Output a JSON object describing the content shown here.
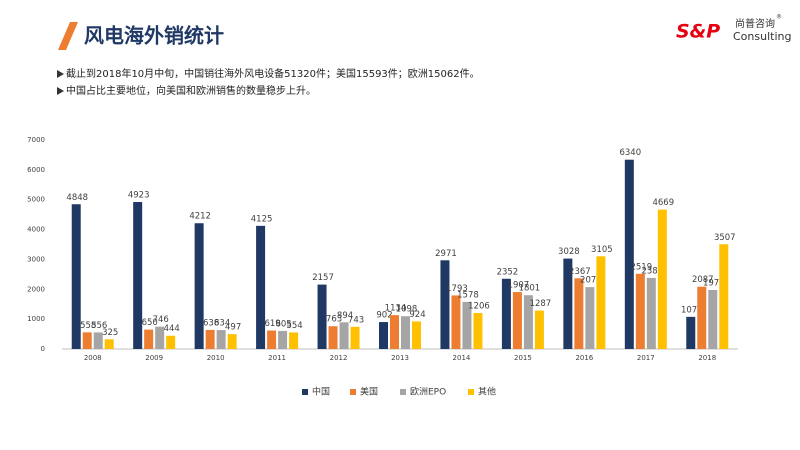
{
  "header": {
    "title": "风电海外销统计",
    "logo_mark": "S&P",
    "logo_cn": "尚普咨询",
    "logo_reg": "®",
    "logo_en": "Consulting"
  },
  "bullets": [
    "截止到2018年10月中旬，中国销往海外风电设备51320件；美国15593件；欧洲15062件。",
    "中国占比主要地位，向美国和欧洲销售的数量稳步上升。"
  ],
  "chart_data": {
    "type": "bar",
    "categories": [
      "2008",
      "2009",
      "2010",
      "2011",
      "2012",
      "2013",
      "2014",
      "2015",
      "2016",
      "2017",
      "2018"
    ],
    "series": [
      {
        "name": "中国",
        "color": "#203864",
        "values": [
          4848,
          4923,
          4212,
          4125,
          2157,
          902,
          2971,
          2352,
          3028,
          6340,
          1077
        ]
      },
      {
        "name": "美国",
        "color": "#ed7d31",
        "values": [
          558,
          650,
          638,
          619,
          763,
          1134,
          1793,
          1907,
          2367,
          2519,
          2087
        ]
      },
      {
        "name": "欧洲EPO",
        "color": "#a5a5a5",
        "values": [
          556,
          746,
          634,
          605,
          894,
          1098,
          1578,
          1801,
          2072,
          2381,
          1976
        ]
      },
      {
        "name": "其他",
        "color": "#ffc000",
        "values": [
          325,
          444,
          497,
          554,
          743,
          924,
          1206,
          1287,
          3105,
          4669,
          3507
        ]
      }
    ],
    "ylim": [
      0,
      7000
    ],
    "yticks": [
      0,
      1000,
      2000,
      3000,
      4000,
      5000,
      6000,
      7000
    ],
    "grid": false,
    "legend_position": "bottom"
  }
}
